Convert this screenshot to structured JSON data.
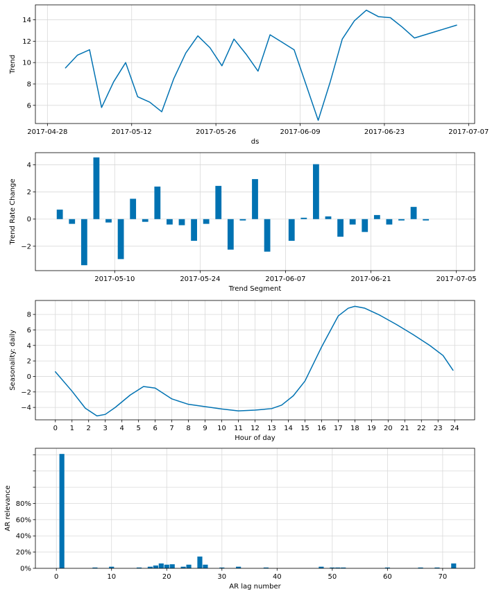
{
  "colors": {
    "series": "#0072b2",
    "grid": "#d9d9d9"
  },
  "chart_data": [
    {
      "id": "trend",
      "type": "line",
      "title": "",
      "xlabel": "ds",
      "ylabel": "Trend",
      "x_axis": "date",
      "xlim": [
        "2017-04-26",
        "2017-07-08"
      ],
      "ylim": [
        4.3,
        15.4
      ],
      "grid": true,
      "x_ticks": [
        "2017-04-28",
        "2017-05-12",
        "2017-05-26",
        "2017-06-09",
        "2017-06-23",
        "2017-07-07"
      ],
      "y_ticks": [
        6,
        8,
        10,
        12,
        14
      ],
      "x_tick_labels": [
        "2017-04-28",
        "2017-05-12",
        "2017-05-26",
        "2017-06-09",
        "2017-06-23",
        "2017-07-07"
      ],
      "y_tick_labels": [
        "6",
        "8",
        "10",
        "12",
        "14"
      ],
      "series": [
        {
          "x": [
            "2017-05-01",
            "2017-05-03",
            "2017-05-05",
            "2017-05-07",
            "2017-05-09",
            "2017-05-11",
            "2017-05-13",
            "2017-05-15",
            "2017-05-17",
            "2017-05-19",
            "2017-05-21",
            "2017-05-23",
            "2017-05-25",
            "2017-05-27",
            "2017-05-29",
            "2017-05-31",
            "2017-06-02",
            "2017-06-04",
            "2017-06-06",
            "2017-06-08",
            "2017-06-10",
            "2017-06-12",
            "2017-06-14",
            "2017-06-16",
            "2017-06-18",
            "2017-06-20",
            "2017-06-22",
            "2017-06-24",
            "2017-06-26",
            "2017-06-28",
            "2017-07-05"
          ],
          "y": [
            9.5,
            10.7,
            11.2,
            5.8,
            8.2,
            10.0,
            6.8,
            6.3,
            5.4,
            8.5,
            10.9,
            12.5,
            11.4,
            9.7,
            12.2,
            10.8,
            9.2,
            12.6,
            11.9,
            11.2,
            7.9,
            4.6,
            8.2,
            12.2,
            13.9,
            14.9,
            14.3,
            14.2,
            13.3,
            12.3,
            13.5
          ]
        }
      ]
    },
    {
      "id": "trend-rate-change",
      "type": "bar",
      "title": "",
      "xlabel": "Trend Segment",
      "ylabel": "Trend Rate Change",
      "x_axis": "date",
      "xlim": [
        "2017-04-27",
        "2017-07-08"
      ],
      "ylim": [
        -3.8,
        4.9
      ],
      "grid": true,
      "x_ticks": [
        "2017-05-10",
        "2017-05-24",
        "2017-06-07",
        "2017-06-21",
        "2017-07-05"
      ],
      "y_ticks": [
        -2,
        0,
        2,
        4
      ],
      "x_tick_labels": [
        "2017-05-10",
        "2017-05-24",
        "2017-06-07",
        "2017-06-21",
        "2017-07-05"
      ],
      "y_tick_labels": [
        "−2",
        "0",
        "2",
        "4"
      ],
      "bar_width_days": 1,
      "x": [
        "2017-05-01",
        "2017-05-03",
        "2017-05-05",
        "2017-05-07",
        "2017-05-09",
        "2017-05-11",
        "2017-05-13",
        "2017-05-15",
        "2017-05-17",
        "2017-05-19",
        "2017-05-21",
        "2017-05-23",
        "2017-05-25",
        "2017-05-27",
        "2017-05-29",
        "2017-05-31",
        "2017-06-02",
        "2017-06-04",
        "2017-06-06",
        "2017-06-08",
        "2017-06-10",
        "2017-06-12",
        "2017-06-14",
        "2017-06-16",
        "2017-06-18",
        "2017-06-20",
        "2017-06-22",
        "2017-06-24",
        "2017-06-26",
        "2017-06-28",
        "2017-06-30",
        "2017-07-02"
      ],
      "values": [
        0.7,
        -0.35,
        -3.4,
        4.55,
        -0.25,
        -2.95,
        1.5,
        -0.2,
        2.4,
        -0.4,
        -0.45,
        -1.6,
        -0.35,
        2.45,
        -2.25,
        -0.1,
        2.95,
        -2.4,
        0.0,
        -1.6,
        0.1,
        4.05,
        0.2,
        -1.3,
        -0.4,
        -0.95,
        0.3,
        -0.4,
        -0.1,
        0.9,
        -0.1,
        0.0
      ]
    },
    {
      "id": "seasonality-daily",
      "type": "line",
      "title": "",
      "xlabel": "Hour of day",
      "ylabel": "Seasonality: daily",
      "xlim": [
        -1.2,
        25.2
      ],
      "ylim": [
        -5.6,
        9.8
      ],
      "grid": true,
      "x_ticks": [
        0,
        1,
        2,
        3,
        4,
        5,
        6,
        7,
        8,
        9,
        10,
        11,
        12,
        13,
        14,
        15,
        16,
        17,
        18,
        19,
        20,
        21,
        22,
        23,
        24
      ],
      "y_ticks": [
        -4,
        -2,
        0,
        2,
        4,
        6,
        8
      ],
      "x_tick_labels": [
        "0",
        "1",
        "2",
        "3",
        "4",
        "5",
        "6",
        "7",
        "8",
        "9",
        "10",
        "11",
        "12",
        "13",
        "14",
        "15",
        "16",
        "17",
        "18",
        "19",
        "20",
        "21",
        "22",
        "23",
        "24"
      ],
      "y_tick_labels": [
        "−4",
        "−2",
        "0",
        "2",
        "4",
        "6",
        "8"
      ],
      "series": [
        {
          "x": [
            0,
            1,
            1.8,
            2.5,
            3,
            3.6,
            4.5,
            5.3,
            6,
            7,
            8,
            9,
            10,
            11,
            12,
            13,
            13.6,
            14.3,
            15,
            16,
            17,
            17.6,
            18,
            18.6,
            19.5,
            20.5,
            21.5,
            22.5,
            23.3,
            23.9
          ],
          "y": [
            0.6,
            -1.9,
            -4.1,
            -5.1,
            -4.9,
            -4.0,
            -2.4,
            -1.3,
            -1.5,
            -2.9,
            -3.6,
            -3.9,
            -4.2,
            -4.45,
            -4.35,
            -4.15,
            -3.7,
            -2.5,
            -0.6,
            3.8,
            7.8,
            8.8,
            9.05,
            8.8,
            7.9,
            6.7,
            5.4,
            4.0,
            2.7,
            0.8
          ]
        }
      ]
    },
    {
      "id": "ar-relevance",
      "type": "bar",
      "title": "",
      "xlabel": "AR lag number",
      "ylabel": "AR relevance",
      "xlim": [
        -3.8,
        75.8
      ],
      "ylim": [
        0,
        1.48
      ],
      "grid": true,
      "x_ticks": [
        0,
        10,
        20,
        30,
        40,
        50,
        60,
        70
      ],
      "y_ticks": [
        0,
        0.2,
        0.4,
        0.6,
        0.8,
        1.0,
        1.2,
        1.4
      ],
      "x_tick_labels": [
        "0",
        "10",
        "20",
        "30",
        "40",
        "50",
        "60",
        "70"
      ],
      "y_tick_labels": [
        "0%",
        "20%",
        "40%",
        "60%",
        "80%",
        "",
        "",
        ""
      ],
      "bar_width": 0.9,
      "x": [
        1,
        7,
        10,
        15,
        17,
        18,
        19,
        20,
        21,
        23,
        24,
        26,
        27,
        30,
        33,
        38,
        48,
        50,
        51,
        52,
        60,
        66,
        69,
        72
      ],
      "values": [
        1.41,
        0.01,
        0.02,
        0.01,
        0.02,
        0.035,
        0.06,
        0.045,
        0.05,
        0.02,
        0.045,
        0.145,
        0.045,
        0.01,
        0.02,
        0.01,
        0.02,
        0.01,
        0.01,
        0.01,
        0.01,
        0.01,
        0.01,
        0.06
      ]
    }
  ]
}
